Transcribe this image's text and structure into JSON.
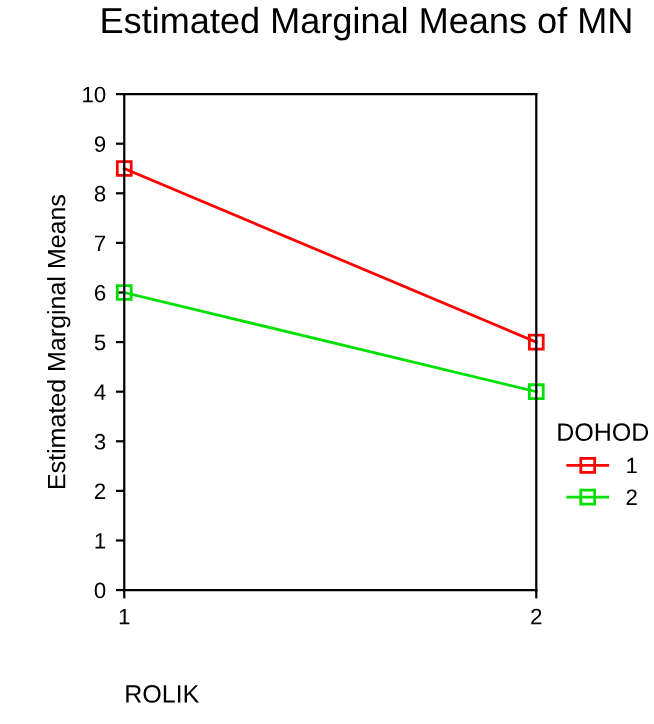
{
  "chart_data": {
    "type": "line",
    "title": "Estimated Marginal Means of MN",
    "xlabel": "ROLIK",
    "ylabel": "Estimated Marginal Means",
    "legend_title": "DOHOD",
    "x": [
      1,
      2
    ],
    "series": [
      {
        "name": "1",
        "color": "#ff0000",
        "values": [
          8.5,
          5.0
        ]
      },
      {
        "name": "2",
        "color": "#00e000",
        "values": [
          6.0,
          4.0
        ]
      }
    ],
    "xlim": [
      1,
      2
    ],
    "xticks": [
      1,
      2
    ],
    "ylim": [
      0,
      10
    ],
    "yticks": [
      0,
      1,
      2,
      3,
      4,
      5,
      6,
      7,
      8,
      9,
      10
    ],
    "grid": false,
    "legend": "right",
    "marker": "square",
    "line_style": "solid"
  }
}
